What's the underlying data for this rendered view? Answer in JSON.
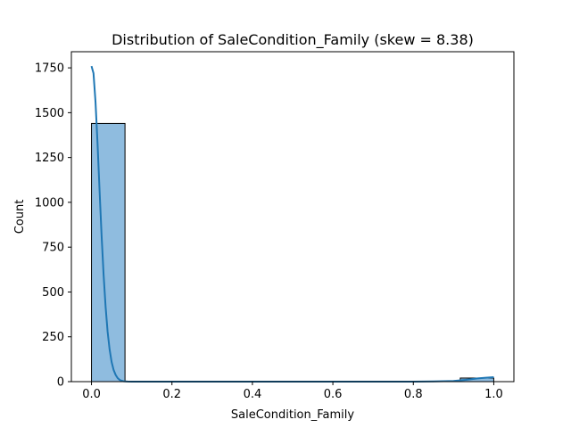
{
  "chart_data": {
    "type": "bar",
    "title": "Distribution of SaleCondition_Family (skew = 8.38)",
    "xlabel": "SaleCondition_Family",
    "ylabel": "Count",
    "xlim": [
      -0.05,
      1.05
    ],
    "ylim": [
      0,
      1840
    ],
    "x_ticks": [
      0.0,
      0.2,
      0.4,
      0.6,
      0.8,
      1.0
    ],
    "x_tick_labels": [
      "0.0",
      "0.2",
      "0.4",
      "0.6",
      "0.8",
      "1.0"
    ],
    "y_ticks": [
      0,
      250,
      500,
      750,
      1000,
      1250,
      1500,
      1750
    ],
    "y_tick_labels": [
      "0",
      "250",
      "500",
      "750",
      "1000",
      "1250",
      "1500",
      "1750"
    ],
    "bins": [
      {
        "x0": 0.0,
        "x1": 0.0833,
        "count": 1440
      },
      {
        "x0": 0.9167,
        "x1": 1.0,
        "count": 20
      }
    ],
    "kde": {
      "x": [
        0.0,
        0.005,
        0.01,
        0.015,
        0.02,
        0.025,
        0.03,
        0.035,
        0.04,
        0.045,
        0.05,
        0.055,
        0.06,
        0.065,
        0.07,
        0.075,
        0.08,
        0.09,
        0.1,
        0.12,
        0.15,
        0.2,
        0.4,
        0.6,
        0.8,
        0.85,
        0.9,
        0.93,
        0.96,
        0.98,
        1.0
      ],
      "y": [
        1760,
        1720,
        1560,
        1330,
        1070,
        820,
        600,
        420,
        280,
        180,
        110,
        65,
        38,
        20,
        10,
        5,
        2,
        0.5,
        0,
        0,
        0,
        0,
        0,
        0,
        0,
        1,
        4,
        10,
        18,
        22,
        25
      ]
    },
    "colors": {
      "bar_fill": "#8fbcdf",
      "bar_edge": "#000000",
      "kde_line": "#1f77b4"
    },
    "grid": false,
    "legend": "none"
  }
}
